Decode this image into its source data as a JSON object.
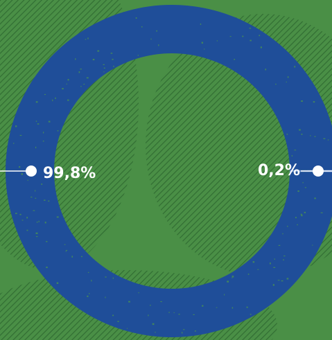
{
  "colors": {
    "background": "#4a8f46",
    "hatch": "#2f6a31",
    "ring_major": "#1f4e99",
    "ring_minor": "#6c8fd1",
    "leader": "#ffffff"
  },
  "chart_data": {
    "type": "pie",
    "style": "donut",
    "slices": [
      {
        "label": "99,8%",
        "value": 99.8
      },
      {
        "label": "0,2%",
        "value": 0.2
      }
    ],
    "title": "",
    "legend": "none"
  }
}
